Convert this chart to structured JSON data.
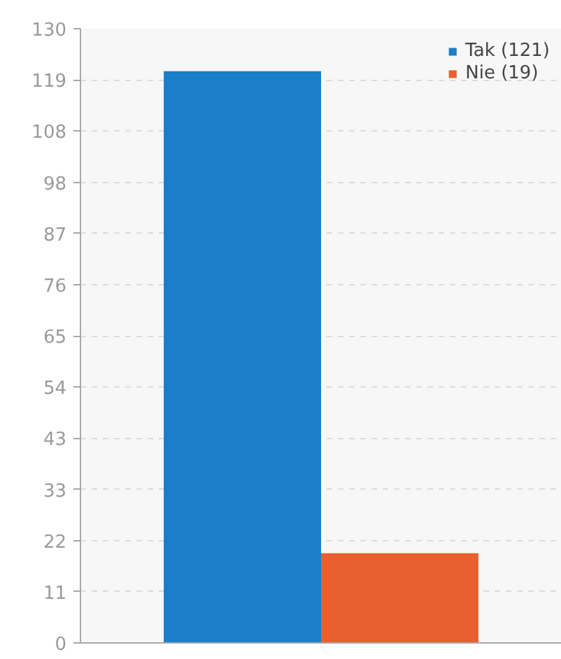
{
  "chart_data": {
    "type": "bar",
    "categories": [
      null
    ],
    "series": [
      {
        "name": "Tak (121)",
        "color": "#1a7fc8",
        "values": [
          121
        ]
      },
      {
        "name": "Nie (19)",
        "color": "#e8602f",
        "values": [
          19
        ]
      }
    ],
    "ylim": [
      0,
      130
    ],
    "yticks": [
      0,
      {
        "value": 10.83,
        "label": "11"
      },
      {
        "value": 21.67,
        "label": "22"
      },
      {
        "value": 32.5,
        "label": "33"
      },
      {
        "value": 43.33,
        "label": "43"
      },
      {
        "value": 54.17,
        "label": "54"
      },
      65,
      {
        "value": 75.83,
        "label": "76"
      },
      {
        "value": 86.67,
        "label": "87"
      },
      {
        "value": 97.5,
        "label": "98"
      },
      {
        "value": 108.33,
        "label": "108"
      },
      {
        "value": 119.17,
        "label": "119"
      },
      130
    ],
    "grid": "y",
    "legend": "top right",
    "tick_labels": "y"
  }
}
